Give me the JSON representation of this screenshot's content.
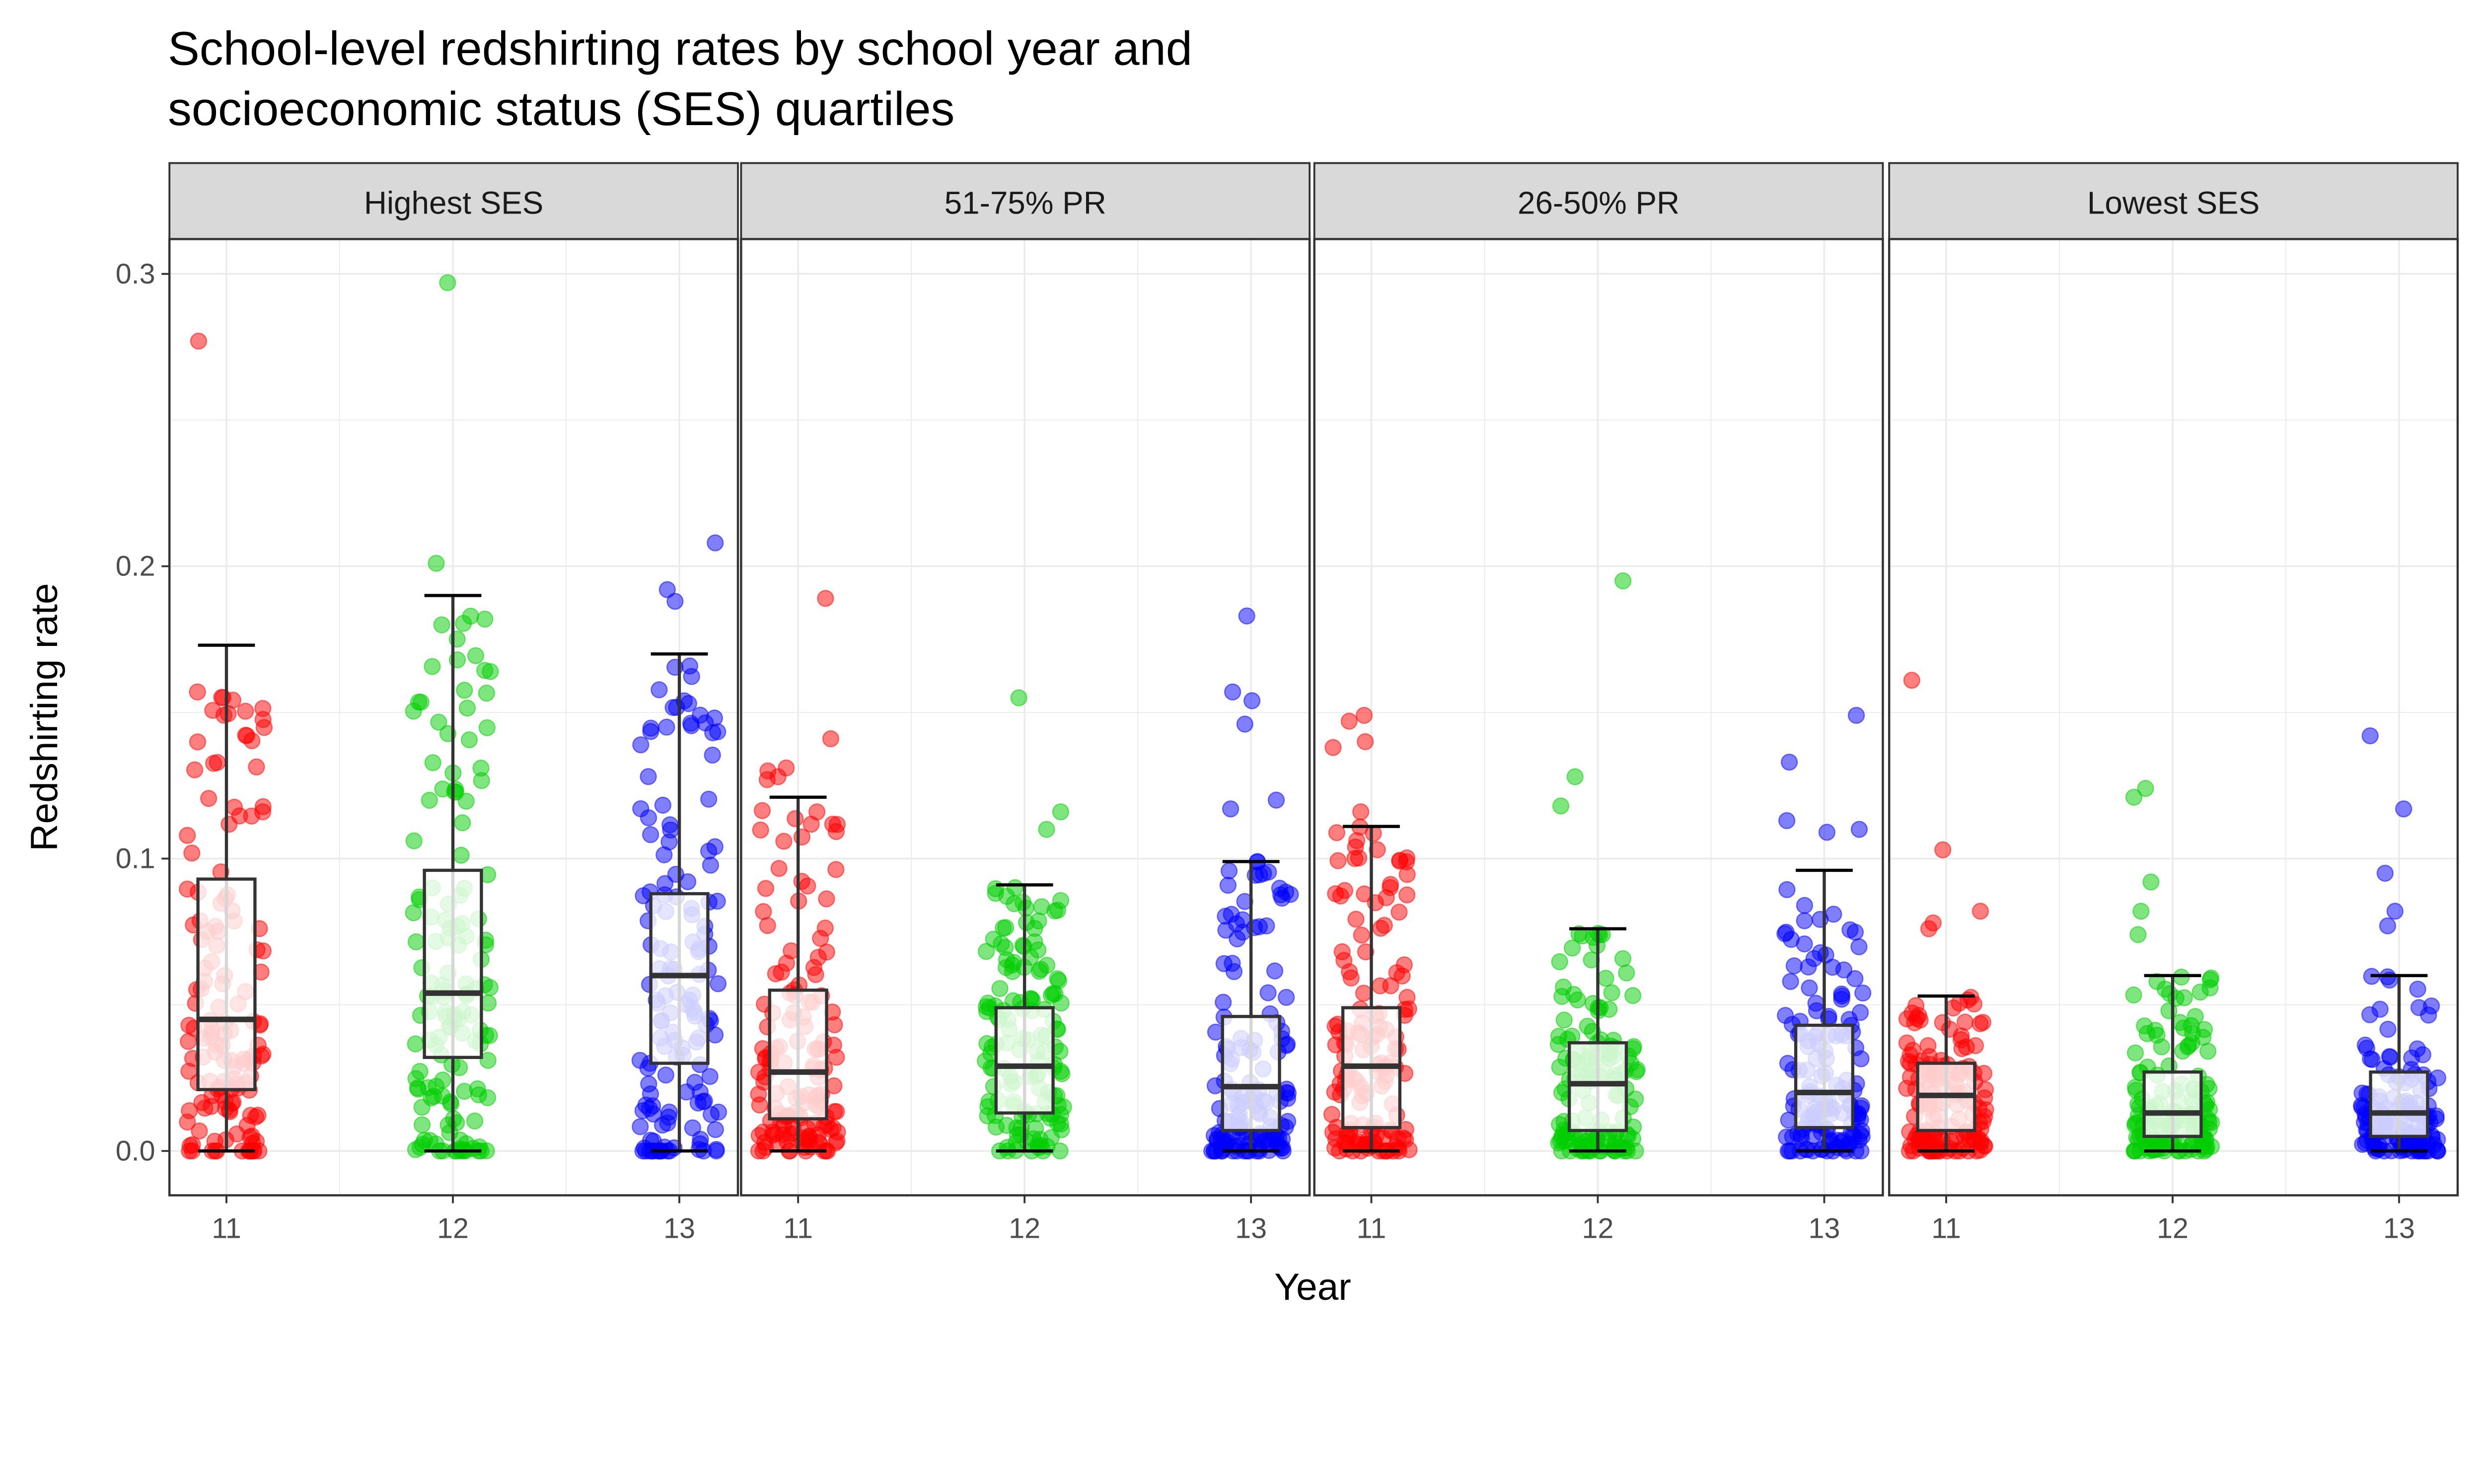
{
  "chart_data": {
    "type": "box",
    "title": "School-level redshirting rates by school year and\nsocioeconomic status (SES) quartiles",
    "title_lines": [
      "School-level redshirting rates by school year and",
      "socioeconomic status (SES) quartiles"
    ],
    "xlabel": "Year",
    "ylabel": "Redshirting rate",
    "ylim": [
      -0.015,
      0.326
    ],
    "y_ticks": [
      "0.0",
      "0.1",
      "0.2",
      "0.3"
    ],
    "y_tick_values": [
      0,
      0.1,
      0.2,
      0.3
    ],
    "grid": true,
    "overlay": "jittered points",
    "categories": [
      "11",
      "12",
      "13"
    ],
    "colors": {
      "11": "#FF0000",
      "12": "#00CD00",
      "13": "#0000FF"
    },
    "facets": [
      {
        "label": "Highest SES",
        "groups": [
          {
            "year": "11",
            "whisker_low": 0,
            "q1": 0.021,
            "median": 0.045,
            "q3": 0.093,
            "whisker_high": 0.173,
            "outliers": [
              0.277
            ]
          },
          {
            "year": "12",
            "whisker_low": 0,
            "q1": 0.032,
            "median": 0.054,
            "q3": 0.096,
            "whisker_high": 0.19,
            "outliers": [
              0.297,
              0.201
            ]
          },
          {
            "year": "13",
            "whisker_low": 0,
            "q1": 0.03,
            "median": 0.06,
            "q3": 0.088,
            "whisker_high": 0.17,
            "outliers": [
              0.208,
              0.192,
              0.188
            ]
          }
        ]
      },
      {
        "label": "51-75% PR",
        "groups": [
          {
            "year": "11",
            "whisker_low": 0,
            "q1": 0.011,
            "median": 0.027,
            "q3": 0.055,
            "whisker_high": 0.121,
            "outliers": [
              0.189,
              0.141,
              0.131,
              0.13,
              0.128,
              0.127
            ]
          },
          {
            "year": "12",
            "whisker_low": 0,
            "q1": 0.013,
            "median": 0.029,
            "q3": 0.049,
            "whisker_high": 0.091,
            "outliers": [
              0.155,
              0.116,
              0.11
            ]
          },
          {
            "year": "13",
            "whisker_low": 0,
            "q1": 0.007,
            "median": 0.022,
            "q3": 0.046,
            "whisker_high": 0.099,
            "outliers": [
              0.183,
              0.157,
              0.154,
              0.146,
              0.12,
              0.117
            ]
          }
        ]
      },
      {
        "label": "26-50% PR",
        "groups": [
          {
            "year": "11",
            "whisker_low": 0,
            "q1": 0.008,
            "median": 0.029,
            "q3": 0.049,
            "whisker_high": 0.111,
            "outliers": [
              0.149,
              0.147,
              0.14,
              0.138,
              0.116
            ]
          },
          {
            "year": "12",
            "whisker_low": 0,
            "q1": 0.007,
            "median": 0.023,
            "q3": 0.037,
            "whisker_high": 0.076,
            "outliers": [
              0.195,
              0.128,
              0.118
            ]
          },
          {
            "year": "13",
            "whisker_low": 0,
            "q1": 0.008,
            "median": 0.02,
            "q3": 0.043,
            "whisker_high": 0.096,
            "outliers": [
              0.149,
              0.133,
              0.113,
              0.11,
              0.109
            ]
          }
        ]
      },
      {
        "label": "Lowest SES",
        "groups": [
          {
            "year": "11",
            "whisker_low": 0,
            "q1": 0.007,
            "median": 0.019,
            "q3": 0.03,
            "whisker_high": 0.053,
            "outliers": [
              0.161,
              0.103,
              0.082,
              0.078,
              0.076
            ]
          },
          {
            "year": "12",
            "whisker_low": 0,
            "q1": 0.005,
            "median": 0.013,
            "q3": 0.027,
            "whisker_high": 0.06,
            "outliers": [
              0.124,
              0.121,
              0.092,
              0.082,
              0.074
            ]
          },
          {
            "year": "13",
            "whisker_low": 0,
            "q1": 0.005,
            "median": 0.013,
            "q3": 0.027,
            "whisker_high": 0.06,
            "outliers": [
              0.142,
              0.117,
              0.095,
              0.082,
              0.077
            ]
          }
        ]
      }
    ]
  }
}
